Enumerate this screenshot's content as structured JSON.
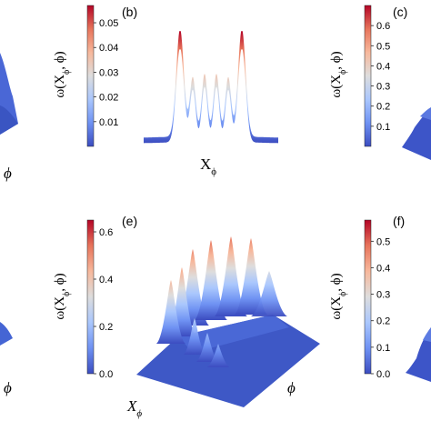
{
  "colormap": {
    "stops": [
      "#3b4cc0",
      "#6f92f3",
      "#aac7fd",
      "#dddddd",
      "#f7b89c",
      "#e7745b",
      "#b40426"
    ]
  },
  "panels": [
    {
      "label": "(b)",
      "colorbar": {
        "min": 0.0,
        "max": 0.057,
        "ticks": [
          "0.01",
          "0.02",
          "0.03",
          "0.04",
          "0.05"
        ],
        "tick_values": [
          0.01,
          0.02,
          0.03,
          0.04,
          0.05
        ]
      },
      "ylabel": "ω(X",
      "ylabel_sub": "ϕ",
      "ylabel_end": ", ϕ)",
      "xlabel": "X",
      "xlabel_sub": "ϕ"
    },
    {
      "label": "(c)",
      "colorbar": {
        "min": 0.0,
        "max": 0.7,
        "ticks": [
          "0.1",
          "0.2",
          "0.3",
          "0.4",
          "0.5",
          "0.6"
        ],
        "tick_values": [
          0.1,
          0.2,
          0.3,
          0.4,
          0.5,
          0.6
        ]
      },
      "ylabel": "ω(X",
      "ylabel_sub": "ϕ",
      "ylabel_end": ", ϕ)"
    },
    {
      "label": "(e)",
      "colorbar": {
        "min": 0.0,
        "max": 0.65,
        "ticks": [
          "0.0",
          "0.2",
          "0.4",
          "0.6"
        ],
        "tick_values": [
          0.0,
          0.2,
          0.4,
          0.6
        ]
      },
      "ylabel": "ω(X",
      "ylabel_sub": "ϕ",
      "ylabel_end": ", ϕ)",
      "xlabel": "X",
      "xlabel_sub": "ϕ",
      "philabel": "ϕ"
    },
    {
      "label": "(f)",
      "colorbar": {
        "min": 0.0,
        "max": 0.58,
        "ticks": [
          "0.0",
          "0.1",
          "0.2",
          "0.3",
          "0.4",
          "0.5"
        ],
        "tick_values": [
          0.0,
          0.1,
          0.2,
          0.3,
          0.4,
          0.5
        ]
      },
      "ylabel": "ω(X",
      "ylabel_sub": "ϕ",
      "ylabel_end": ", ϕ)"
    }
  ],
  "edge_labels": {
    "left_top_phi": "ϕ",
    "left_bottom_phi": "ϕ"
  }
}
